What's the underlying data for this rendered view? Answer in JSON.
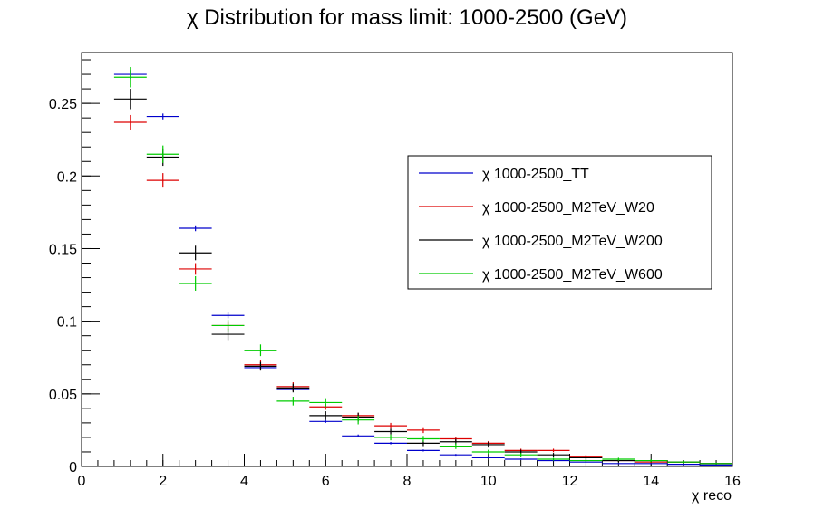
{
  "chart_data": {
    "type": "scatter",
    "title": "χ Distribution for mass limit: 1000-2500 (GeV)",
    "xlabel": "χ reco",
    "ylabel": "",
    "xlim": [
      0,
      16
    ],
    "ylim": [
      0,
      0.285
    ],
    "x_ticks": [
      "0",
      "2",
      "4",
      "6",
      "8",
      "10",
      "12",
      "14",
      "16"
    ],
    "y_ticks": [
      "0",
      "0.05",
      "0.1",
      "0.15",
      "0.2",
      "0.25"
    ],
    "grid": false,
    "legend_position": "top-right",
    "bin_edges": [
      0.8,
      1.6,
      2.4,
      3.2,
      4.0,
      4.8,
      5.6,
      6.4,
      7.2,
      8.0,
      8.8,
      9.6,
      10.4,
      11.2,
      12.0,
      12.8,
      13.6,
      14.4,
      15.2,
      16.0
    ],
    "series": [
      {
        "name": "χ 1000-2500_TT",
        "color": "#0000cc",
        "values": [
          0.27,
          0.241,
          0.164,
          0.104,
          0.068,
          0.053,
          0.031,
          0.021,
          0.016,
          0.011,
          0.008,
          0.006,
          0.005,
          0.004,
          0.003,
          0.002,
          0.002,
          0.0015,
          0.001
        ],
        "errors": [
          0.003,
          0.002,
          0.002,
          0.002,
          0.001,
          0.001,
          0.001,
          0.001,
          0.0008,
          0.0007,
          0.0006,
          0.0005,
          0.0005,
          0.0004,
          0.0004,
          0.0003,
          0.0003,
          0.0003,
          0.0002
        ]
      },
      {
        "name": "χ 1000-2500_M2TeV_W20",
        "color": "#dd0000",
        "values": [
          0.237,
          0.197,
          0.136,
          0.097,
          0.07,
          0.055,
          0.041,
          0.035,
          0.028,
          0.025,
          0.019,
          0.016,
          0.011,
          0.011,
          0.007,
          0.004,
          0.003,
          0.003,
          0.002
        ],
        "errors": [
          0.005,
          0.005,
          0.004,
          0.003,
          0.003,
          0.003,
          0.002,
          0.002,
          0.002,
          0.002,
          0.0015,
          0.0015,
          0.0012,
          0.0012,
          0.001,
          0.0008,
          0.0007,
          0.0007,
          0.0005
        ]
      },
      {
        "name": "χ 1000-2500_M2TeV_W200",
        "color": "#000000",
        "values": [
          0.253,
          0.213,
          0.147,
          0.091,
          0.069,
          0.054,
          0.035,
          0.034,
          0.024,
          0.016,
          0.017,
          0.015,
          0.01,
          0.008,
          0.006,
          0.004,
          0.004,
          0.003,
          0.002
        ],
        "errors": [
          0.007,
          0.006,
          0.005,
          0.004,
          0.003,
          0.003,
          0.003,
          0.003,
          0.002,
          0.002,
          0.002,
          0.002,
          0.0015,
          0.0013,
          0.0012,
          0.001,
          0.001,
          0.0008,
          0.0006
        ]
      },
      {
        "name": "χ 1000-2500_M2TeV_W600",
        "color": "#00cc00",
        "values": [
          0.268,
          0.215,
          0.126,
          0.097,
          0.08,
          0.045,
          0.044,
          0.032,
          0.02,
          0.019,
          0.014,
          0.01,
          0.008,
          0.005,
          0.004,
          0.005,
          0.004,
          0.003,
          0.002
        ],
        "errors": [
          0.007,
          0.006,
          0.005,
          0.004,
          0.004,
          0.003,
          0.003,
          0.003,
          0.002,
          0.002,
          0.002,
          0.0015,
          0.0013,
          0.001,
          0.001,
          0.001,
          0.001,
          0.0008,
          0.0006
        ]
      }
    ]
  }
}
